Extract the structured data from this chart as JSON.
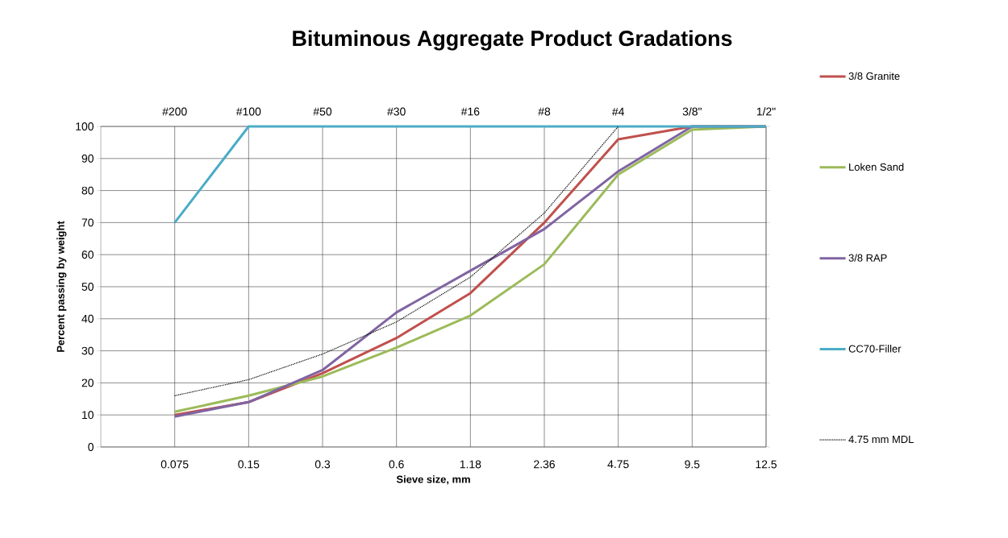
{
  "chart_data": {
    "type": "line",
    "title": "Bituminous Aggregate Product Gradations",
    "xlabel": "Sieve size, mm",
    "ylabel": "Percent passing  by weight",
    "categories": [
      "0.075",
      "0.15",
      "0.3",
      "0.6",
      "1.18",
      "2.36",
      "4.75",
      "9.5",
      "12.5"
    ],
    "series": [
      {
        "name": "3/8 Granite",
        "color": "#c0504d",
        "values": [
          10,
          14,
          23,
          34,
          48,
          70,
          96,
          100,
          100
        ]
      },
      {
        "name": "Loken Sand",
        "color": "#9bbb59",
        "values": [
          11,
          16,
          22,
          31,
          41,
          57,
          85,
          99,
          100
        ]
      },
      {
        "name": "3/8 RAP",
        "color": "#8064a2",
        "values": [
          9.5,
          14,
          24,
          42,
          55,
          68,
          86,
          100,
          100
        ]
      },
      {
        "name": "CC70-Filler",
        "color": "#4bacc6",
        "values": [
          70,
          100,
          100,
          100,
          100,
          100,
          100,
          100,
          100
        ]
      },
      {
        "name": "4.75 mm MDL",
        "color": "#000000",
        "line_style": "dotted",
        "values": [
          16,
          21,
          29,
          39,
          53,
          73,
          100,
          null,
          null
        ]
      }
    ],
    "annotations": [
      "#200",
      "#100",
      "#50",
      "#30",
      "#16",
      "#8",
      "#4",
      "3/8\"",
      "1/2\""
    ],
    "ylim": [
      0,
      100
    ],
    "yticks": [
      0,
      10,
      20,
      30,
      40,
      50,
      60,
      70,
      80,
      90,
      100
    ],
    "grid": true,
    "legend": "right",
    "marker": "none",
    "line_style": "solid"
  }
}
